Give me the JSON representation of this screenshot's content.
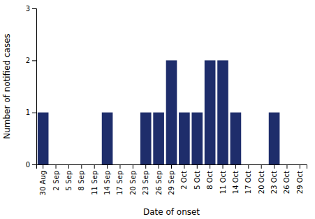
{
  "chart_data": {
    "type": "bar",
    "categories": [
      "30 Aug",
      "2 Sep",
      "5 Sep",
      "8 Sep",
      "11 Sep",
      "14 Sep",
      "17 Sep",
      "20 Sep",
      "23 Sep",
      "26 Sep",
      "29 Sep",
      "2 Oct",
      "5 Oct",
      "8 Oct",
      "11 Oct",
      "14 Oct",
      "17 Oct",
      "20 Oct",
      "23 Oct",
      "26 Oct",
      "29 Oct"
    ],
    "values": [
      1,
      0,
      0,
      0,
      0,
      1,
      0,
      0,
      1,
      1,
      2,
      1,
      1,
      2,
      2,
      1,
      0,
      0,
      1,
      0,
      0
    ],
    "color": "#1e2d6b",
    "xlabel": "Date of onset",
    "ylabel": "Number of notified cases",
    "ylim": [
      0,
      3
    ],
    "yticks": [
      0,
      1,
      2,
      3
    ],
    "grid": false
  }
}
